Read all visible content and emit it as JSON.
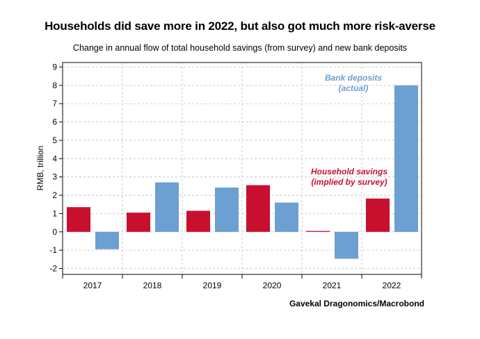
{
  "chart_data": {
    "type": "bar",
    "title": "Households did save more in 2022, but also got much more risk-averse",
    "subtitle": "Change in annual flow of total household savings (from survey) and new bank deposits",
    "ylabel": "RMB, trillion",
    "xlabel": "",
    "source": "Gavekal Dragonomics/Macrobond",
    "categories": [
      "2017",
      "2018",
      "2019",
      "2020",
      "2021",
      "2022"
    ],
    "ylim": [
      -2,
      9
    ],
    "yticks": [
      -2,
      -1,
      0,
      1,
      2,
      3,
      4,
      5,
      6,
      7,
      8,
      9
    ],
    "grid": true,
    "series": [
      {
        "name": "Household savings (implied by survey)",
        "color": "#c8102e",
        "values": [
          1.35,
          1.05,
          1.15,
          2.55,
          0.05,
          1.82
        ]
      },
      {
        "name": "Bank deposits (actual)",
        "color": "#6c9fd2",
        "values": [
          -0.95,
          2.7,
          2.42,
          1.6,
          -1.47,
          8.0
        ]
      }
    ],
    "annotations": [
      {
        "series": 1,
        "lines": [
          "Bank deposits",
          "(actual)"
        ]
      },
      {
        "series": 0,
        "lines": [
          "Household savings",
          "(implied by survey)"
        ]
      }
    ]
  }
}
